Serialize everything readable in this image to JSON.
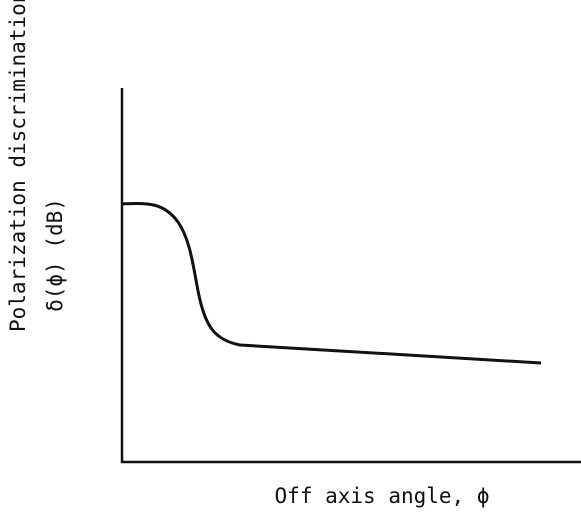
{
  "chart_data": {
    "type": "line",
    "y_label": [
      "Polarization discrimination,",
      "δ(ϕ) (dB)"
    ],
    "x_label": "Off axis angle, ϕ"
  }
}
